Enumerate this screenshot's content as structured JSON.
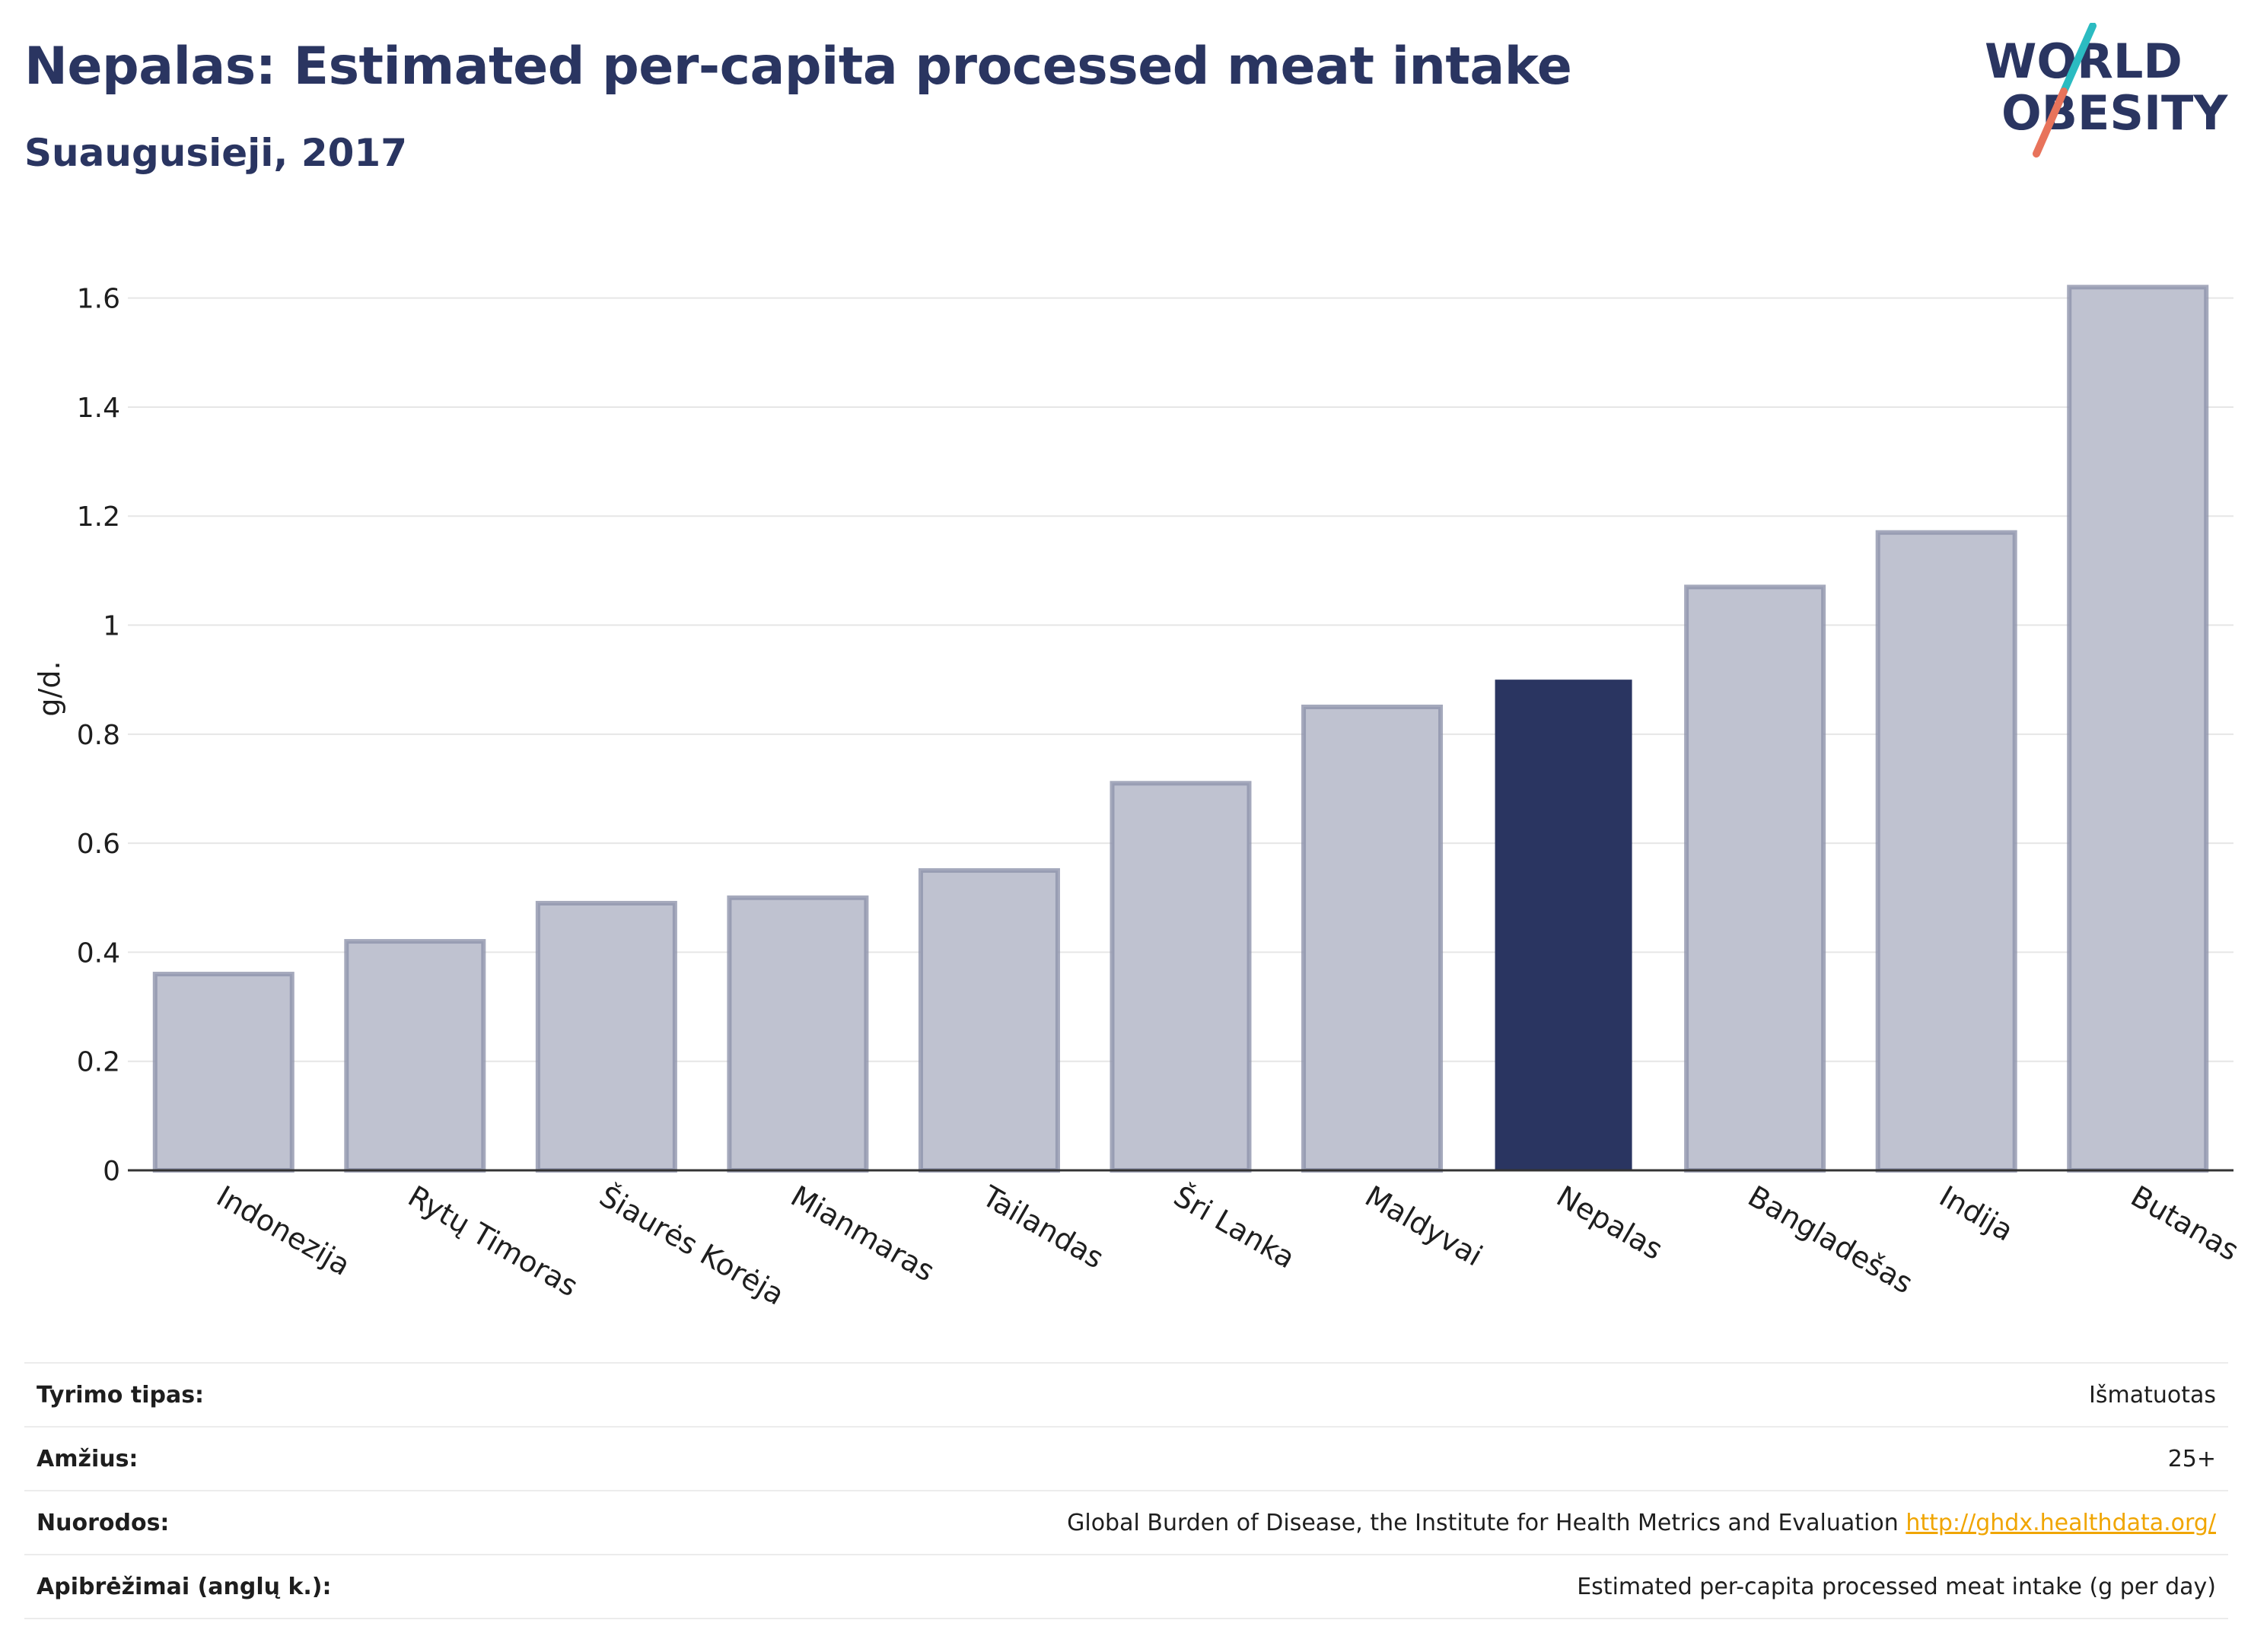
{
  "header": {
    "title": "Nepalas: Estimated per-capita processed meat intake",
    "subtitle": "Suaugusieji, 2017"
  },
  "logo": {
    "line1": "WORLD",
    "line2": "OBESITY",
    "colors": {
      "text": "#2a3561",
      "slash_top": "#2bbbc1",
      "slash_bottom": "#e8735b"
    }
  },
  "chart_data": {
    "type": "bar",
    "categories": [
      "Indonezija",
      "Rytų Timoras",
      "Šiaurės Korėja",
      "Mianmaras",
      "Tailandas",
      "Šri Lanka",
      "Maldyvai",
      "Nepalas",
      "Bangladešas",
      "Indija",
      "Butanas"
    ],
    "values": [
      0.36,
      0.42,
      0.49,
      0.5,
      0.55,
      0.71,
      0.85,
      0.9,
      1.07,
      1.17,
      1.62
    ],
    "highlight": "Nepalas",
    "ylabel": "g/d.",
    "ylim": [
      0,
      1.7
    ],
    "yticks": [
      0,
      0.2,
      0.4,
      0.6,
      0.8,
      1,
      1.2,
      1.4,
      1.6
    ],
    "ytick_labels": [
      "0",
      "0.2",
      "0.4",
      "0.6",
      "0.8",
      "1",
      "1.2",
      "1.4",
      "1.6"
    ],
    "grid": true,
    "colors": {
      "highlight": "#2a3561",
      "other_fill": "#bfc2d0",
      "other_stroke": "#8e93ab"
    }
  },
  "info": {
    "rows": [
      {
        "key": "Tyrimo tipas:",
        "value": "Išmatuotas"
      },
      {
        "key": "Amžius:",
        "value": "25+"
      },
      {
        "key": "Nuorodos:",
        "value": "Global Burden of Disease, the Institute for Health Metrics and Evaluation",
        "link": "http://ghdx.healthdata.org/"
      },
      {
        "key": "Apibrėžimai (anglų k.):",
        "value": "Estimated per-capita processed meat intake (g per day)"
      }
    ]
  }
}
